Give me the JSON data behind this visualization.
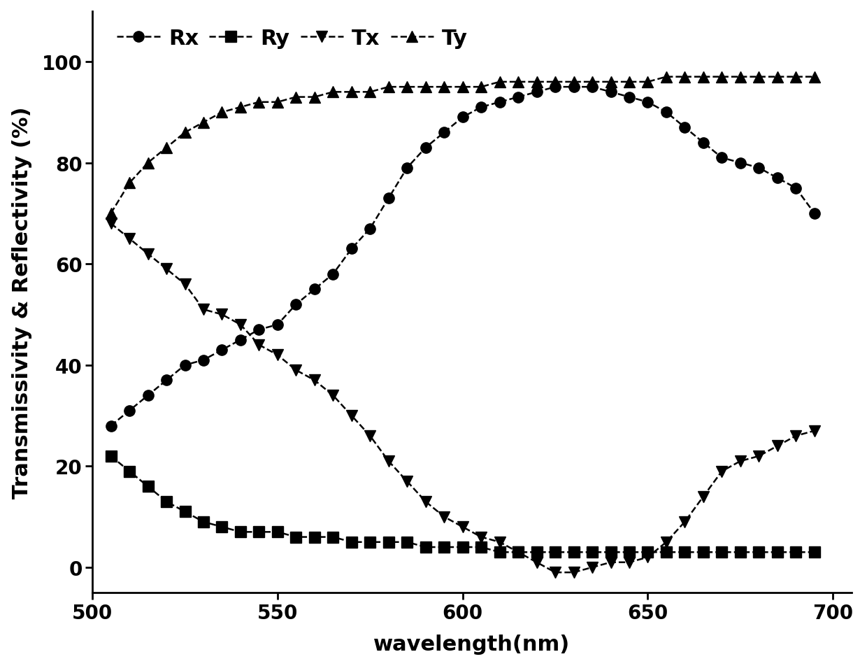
{
  "wavelength": [
    505,
    510,
    515,
    520,
    525,
    530,
    535,
    540,
    545,
    550,
    555,
    560,
    565,
    570,
    575,
    580,
    585,
    590,
    595,
    600,
    605,
    610,
    615,
    620,
    625,
    630,
    635,
    640,
    645,
    650,
    655,
    660,
    665,
    670,
    675,
    680,
    685,
    690,
    695
  ],
  "Rx": [
    28,
    31,
    34,
    37,
    40,
    41,
    43,
    45,
    47,
    48,
    52,
    55,
    58,
    63,
    67,
    73,
    79,
    83,
    86,
    89,
    91,
    92,
    93,
    94,
    95,
    95,
    95,
    94,
    93,
    92,
    90,
    87,
    84,
    81,
    80,
    79,
    77,
    75,
    70
  ],
  "Ry": [
    22,
    19,
    16,
    13,
    11,
    9,
    8,
    7,
    7,
    7,
    6,
    6,
    6,
    5,
    5,
    5,
    5,
    4,
    4,
    4,
    4,
    3,
    3,
    3,
    3,
    3,
    3,
    3,
    3,
    3,
    3,
    3,
    3,
    3,
    3,
    3,
    3,
    3,
    3
  ],
  "Tx": [
    68,
    65,
    62,
    59,
    56,
    51,
    50,
    48,
    44,
    42,
    39,
    37,
    34,
    30,
    26,
    21,
    17,
    13,
    10,
    8,
    6,
    5,
    3,
    1,
    -1,
    -1,
    0,
    1,
    1,
    2,
    5,
    9,
    14,
    19,
    21,
    22,
    24,
    26,
    27
  ],
  "Ty": [
    70,
    76,
    80,
    83,
    86,
    88,
    90,
    91,
    92,
    92,
    93,
    93,
    94,
    94,
    94,
    95,
    95,
    95,
    95,
    95,
    95,
    96,
    96,
    96,
    96,
    96,
    96,
    96,
    96,
    96,
    97,
    97,
    97,
    97,
    97,
    97,
    97,
    97,
    97
  ],
  "xlabel": "wavelength(nm)",
  "ylabel": "Transmissivity & Reflectivity (%)",
  "xlim": [
    500,
    705
  ],
  "ylim": [
    -5,
    110
  ],
  "yticks": [
    0,
    20,
    40,
    60,
    80,
    100
  ],
  "xticks": [
    500,
    550,
    600,
    650,
    700
  ],
  "legend_labels": [
    "Rx",
    "Ry",
    "Tx",
    "Ty"
  ],
  "line_color": "#000000",
  "marker_Rx": "o",
  "marker_Ry": "s",
  "marker_Tx": "v",
  "marker_Ty": "^",
  "markersize": 11,
  "linewidth": 1.8,
  "label_fontsize": 22,
  "tick_fontsize": 20,
  "legend_fontsize": 22,
  "background_color": "#ffffff"
}
